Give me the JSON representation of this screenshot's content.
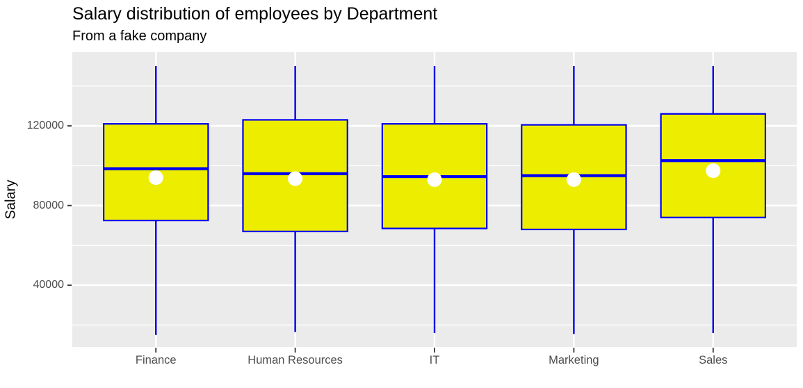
{
  "chart_data": {
    "type": "boxplot",
    "title": "Salary distribution of employees by Department",
    "subtitle": "From a fake company",
    "ylabel": "Salary",
    "xlabel": "",
    "categories": [
      "Finance",
      "Human Resources",
      "IT",
      "Marketing",
      "Sales"
    ],
    "series": [
      {
        "name": "Finance",
        "min": 15000,
        "q1": 72500,
        "median": 98500,
        "mean": 94000,
        "q3": 121000,
        "max": 150000
      },
      {
        "name": "Human Resources",
        "min": 16500,
        "q1": 67000,
        "median": 96000,
        "mean": 93500,
        "q3": 123000,
        "max": 150000
      },
      {
        "name": "IT",
        "min": 16000,
        "q1": 68500,
        "median": 94500,
        "mean": 93000,
        "q3": 121000,
        "max": 150000
      },
      {
        "name": "Marketing",
        "min": 15500,
        "q1": 68000,
        "median": 95000,
        "mean": 93000,
        "q3": 120500,
        "max": 150000
      },
      {
        "name": "Sales",
        "min": 16000,
        "q1": 74000,
        "median": 102500,
        "mean": 97500,
        "q3": 126000,
        "max": 150000
      }
    ],
    "y_axis": {
      "ticks": [
        40000,
        80000,
        120000
      ],
      "tick_labels": [
        "40000",
        "80000",
        "120000"
      ],
      "minor_ticks": [
        20000,
        60000,
        100000,
        140000
      ],
      "ylim": [
        9000,
        157000
      ],
      "grid": true
    },
    "legend": "none",
    "style": {
      "panel_bg": "#EBEBEB",
      "grid_color": "#FFFFFF",
      "box_fill": "#EDED00",
      "box_border": "#0000EE",
      "median_color": "#0000EE",
      "whisker_color": "#0000EE",
      "mean_dot_color": "#FFFFFF",
      "axis_text_color": "#4D4D4D",
      "tick_mark_color": "#333333",
      "title_color": "#000000"
    }
  }
}
